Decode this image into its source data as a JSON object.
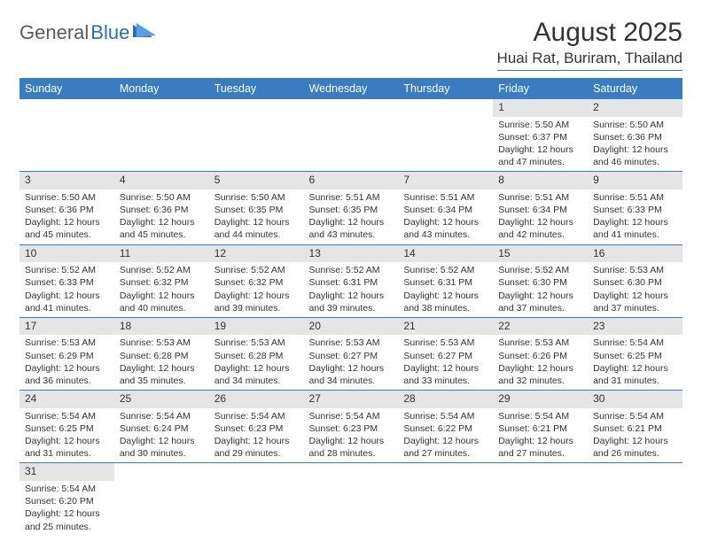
{
  "logo": {
    "part1": "General",
    "part2": "Blue"
  },
  "title": "August 2025",
  "location": "Huai Rat, Buriram, Thailand",
  "colors": {
    "header_bg": "#3a7cc2",
    "header_text": "#ffffff",
    "daynum_bg": "#e5e5e5",
    "border": "#3a7cc2",
    "logo_gray": "#5a5a5a",
    "logo_blue": "#2a6db8"
  },
  "weekdays": [
    "Sunday",
    "Monday",
    "Tuesday",
    "Wednesday",
    "Thursday",
    "Friday",
    "Saturday"
  ],
  "weeks": [
    [
      null,
      null,
      null,
      null,
      null,
      {
        "n": "1",
        "sr": "5:50 AM",
        "ss": "6:37 PM",
        "dl": "12 hours and 47 minutes."
      },
      {
        "n": "2",
        "sr": "5:50 AM",
        "ss": "6:36 PM",
        "dl": "12 hours and 46 minutes."
      }
    ],
    [
      {
        "n": "3",
        "sr": "5:50 AM",
        "ss": "6:36 PM",
        "dl": "12 hours and 45 minutes."
      },
      {
        "n": "4",
        "sr": "5:50 AM",
        "ss": "6:36 PM",
        "dl": "12 hours and 45 minutes."
      },
      {
        "n": "5",
        "sr": "5:50 AM",
        "ss": "6:35 PM",
        "dl": "12 hours and 44 minutes."
      },
      {
        "n": "6",
        "sr": "5:51 AM",
        "ss": "6:35 PM",
        "dl": "12 hours and 43 minutes."
      },
      {
        "n": "7",
        "sr": "5:51 AM",
        "ss": "6:34 PM",
        "dl": "12 hours and 43 minutes."
      },
      {
        "n": "8",
        "sr": "5:51 AM",
        "ss": "6:34 PM",
        "dl": "12 hours and 42 minutes."
      },
      {
        "n": "9",
        "sr": "5:51 AM",
        "ss": "6:33 PM",
        "dl": "12 hours and 41 minutes."
      }
    ],
    [
      {
        "n": "10",
        "sr": "5:52 AM",
        "ss": "6:33 PM",
        "dl": "12 hours and 41 minutes."
      },
      {
        "n": "11",
        "sr": "5:52 AM",
        "ss": "6:32 PM",
        "dl": "12 hours and 40 minutes."
      },
      {
        "n": "12",
        "sr": "5:52 AM",
        "ss": "6:32 PM",
        "dl": "12 hours and 39 minutes."
      },
      {
        "n": "13",
        "sr": "5:52 AM",
        "ss": "6:31 PM",
        "dl": "12 hours and 39 minutes."
      },
      {
        "n": "14",
        "sr": "5:52 AM",
        "ss": "6:31 PM",
        "dl": "12 hours and 38 minutes."
      },
      {
        "n": "15",
        "sr": "5:52 AM",
        "ss": "6:30 PM",
        "dl": "12 hours and 37 minutes."
      },
      {
        "n": "16",
        "sr": "5:53 AM",
        "ss": "6:30 PM",
        "dl": "12 hours and 37 minutes."
      }
    ],
    [
      {
        "n": "17",
        "sr": "5:53 AM",
        "ss": "6:29 PM",
        "dl": "12 hours and 36 minutes."
      },
      {
        "n": "18",
        "sr": "5:53 AM",
        "ss": "6:28 PM",
        "dl": "12 hours and 35 minutes."
      },
      {
        "n": "19",
        "sr": "5:53 AM",
        "ss": "6:28 PM",
        "dl": "12 hours and 34 minutes."
      },
      {
        "n": "20",
        "sr": "5:53 AM",
        "ss": "6:27 PM",
        "dl": "12 hours and 34 minutes."
      },
      {
        "n": "21",
        "sr": "5:53 AM",
        "ss": "6:27 PM",
        "dl": "12 hours and 33 minutes."
      },
      {
        "n": "22",
        "sr": "5:53 AM",
        "ss": "6:26 PM",
        "dl": "12 hours and 32 minutes."
      },
      {
        "n": "23",
        "sr": "5:54 AM",
        "ss": "6:25 PM",
        "dl": "12 hours and 31 minutes."
      }
    ],
    [
      {
        "n": "24",
        "sr": "5:54 AM",
        "ss": "6:25 PM",
        "dl": "12 hours and 31 minutes."
      },
      {
        "n": "25",
        "sr": "5:54 AM",
        "ss": "6:24 PM",
        "dl": "12 hours and 30 minutes."
      },
      {
        "n": "26",
        "sr": "5:54 AM",
        "ss": "6:23 PM",
        "dl": "12 hours and 29 minutes."
      },
      {
        "n": "27",
        "sr": "5:54 AM",
        "ss": "6:23 PM",
        "dl": "12 hours and 28 minutes."
      },
      {
        "n": "28",
        "sr": "5:54 AM",
        "ss": "6:22 PM",
        "dl": "12 hours and 27 minutes."
      },
      {
        "n": "29",
        "sr": "5:54 AM",
        "ss": "6:21 PM",
        "dl": "12 hours and 27 minutes."
      },
      {
        "n": "30",
        "sr": "5:54 AM",
        "ss": "6:21 PM",
        "dl": "12 hours and 26 minutes."
      }
    ],
    [
      {
        "n": "31",
        "sr": "5:54 AM",
        "ss": "6:20 PM",
        "dl": "12 hours and 25 minutes."
      },
      null,
      null,
      null,
      null,
      null,
      null
    ]
  ]
}
